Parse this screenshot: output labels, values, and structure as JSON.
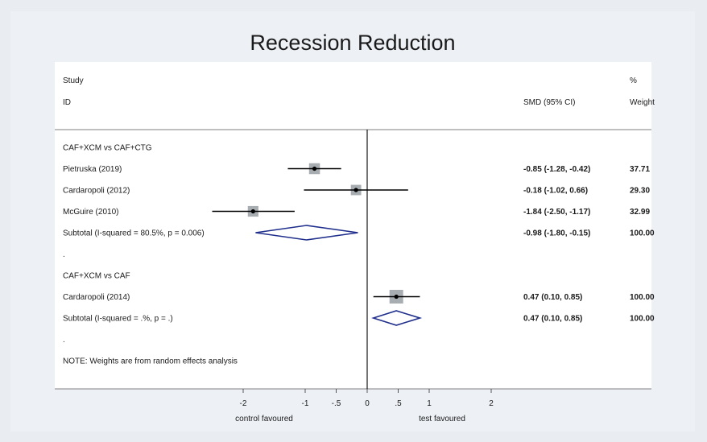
{
  "chart_data": {
    "type": "forest",
    "title": "Recession Reduction",
    "header": {
      "study_line1": "Study",
      "study_line2": "ID",
      "effect": "SMD (95% CI)",
      "weight_line1": "%",
      "weight_line2": "Weight"
    },
    "rows": [
      {
        "kind": "group",
        "label": "CAF+XCM vs CAF+CTG"
      },
      {
        "kind": "study",
        "label": "Pietruska (2019)",
        "est": -0.85,
        "lo": -1.28,
        "hi": -0.42,
        "ci_text": "-0.85 (-1.28, -0.42)",
        "weight_text": "37.71",
        "weight": 37.71
      },
      {
        "kind": "study",
        "label": "Cardaropoli (2012)",
        "est": -0.18,
        "lo": -1.02,
        "hi": 0.66,
        "ci_text": "-0.18 (-1.02, 0.66)",
        "weight_text": "29.30",
        "weight": 29.3
      },
      {
        "kind": "study",
        "label": "McGuire (2010)",
        "est": -1.84,
        "lo": -2.5,
        "hi": -1.17,
        "ci_text": "-1.84 (-2.50, -1.17)",
        "weight_text": "32.99",
        "weight": 32.99
      },
      {
        "kind": "subtotal",
        "label": "Subtotal  (I-squared = 80.5%, p = 0.006)",
        "est": -0.98,
        "lo": -1.8,
        "hi": -0.15,
        "ci_text": "-0.98 (-1.80, -0.15)",
        "weight_text": "100.00"
      },
      {
        "kind": "spacer",
        "label": "."
      },
      {
        "kind": "group",
        "label": "CAF+XCM vs CAF"
      },
      {
        "kind": "study",
        "label": "Cardaropoli (2014)",
        "est": 0.47,
        "lo": 0.1,
        "hi": 0.85,
        "ci_text": "0.47 (0.10, 0.85)",
        "weight_text": "100.00",
        "weight": 100.0
      },
      {
        "kind": "subtotal",
        "label": "Subtotal  (I-squared = .%, p = .)",
        "est": 0.47,
        "lo": 0.1,
        "hi": 0.85,
        "ci_text": "0.47 (0.10, 0.85)",
        "weight_text": "100.00"
      },
      {
        "kind": "spacer",
        "label": "."
      },
      {
        "kind": "note",
        "label": "NOTE: Weights are from random effects analysis"
      }
    ],
    "x_ticks": [
      -2,
      -1,
      -0.5,
      0,
      0.5,
      1,
      2
    ],
    "x_tick_labels": [
      "-2",
      "-1",
      "-.5",
      "0",
      ".5",
      "1",
      "2"
    ],
    "x_left_label": "control favoured",
    "x_right_label": "test favoured",
    "null_line": 0,
    "colors": {
      "diamond": "#1f2e8c",
      "ci_line": "#000000",
      "weight_box": "#a8adb2",
      "point": "#000000"
    }
  }
}
